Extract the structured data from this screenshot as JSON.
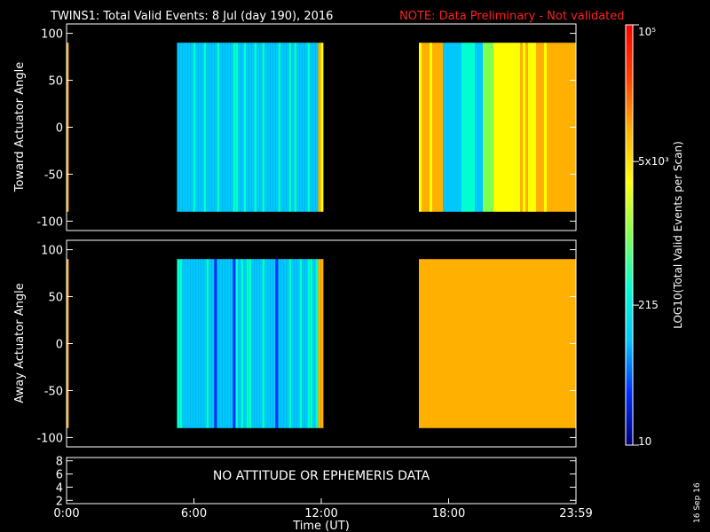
{
  "header": {
    "title": "TWINS1: Total Valid Events:  8 Jul (day 190), 2016",
    "note": "NOTE: Data Preliminary - Not validated",
    "note_color": "#ff2020"
  },
  "footer": {
    "date_stamp": "16 Sep 16",
    "no_data_message": "NO ATTITUDE OR EPHEMERIS DATA"
  },
  "chart_data": [
    {
      "type": "heatmap",
      "ylabel": "Toward Actuator Angle",
      "xlabel": "",
      "ylim": [
        -110,
        110
      ],
      "yticks": [
        "100",
        "50",
        "0",
        "-50",
        "-100"
      ],
      "data_y_range": [
        -90,
        90
      ],
      "segments": [
        {
          "x_start_hours": 0.0,
          "x_end_hours": 0.1,
          "level": "high"
        },
        {
          "x_start_hours": 5.2,
          "x_end_hours": 12.1,
          "level": "low"
        },
        {
          "x_start_hours": 16.6,
          "x_end_hours": 24.0,
          "level": "rising"
        }
      ]
    },
    {
      "type": "heatmap",
      "ylabel": "Away Actuator Angle",
      "xlabel": "",
      "ylim": [
        -110,
        110
      ],
      "yticks": [
        "100",
        "50",
        "0",
        "-50",
        "-100"
      ],
      "data_y_range": [
        -90,
        90
      ],
      "segments": [
        {
          "x_start_hours": 0.0,
          "x_end_hours": 0.1,
          "level": "high"
        },
        {
          "x_start_hours": 5.2,
          "x_end_hours": 12.1,
          "level": "low"
        },
        {
          "x_start_hours": 16.6,
          "x_end_hours": 24.0,
          "level": "high"
        }
      ]
    },
    {
      "type": "line",
      "ylabel": "",
      "xlabel": "Time (UT)",
      "ylim": [
        1.5,
        8.5
      ],
      "yticks": [
        "8",
        "6",
        "4",
        "2"
      ],
      "xticks": [
        "0:00",
        "6:00",
        "12:00",
        "18:00",
        "23:59"
      ],
      "series": []
    }
  ],
  "colorbar": {
    "title": "LOG10(Total Valid Events per Scan)",
    "ticks": [
      {
        "label": "10⁵",
        "value": 100000
      },
      {
        "label": "5x10³",
        "value": 5000
      },
      {
        "label": "215",
        "value": 215
      },
      {
        "label": "10",
        "value": 10
      }
    ],
    "colors": [
      "#00007a",
      "#0030ff",
      "#00c8ff",
      "#00ffd0",
      "#7fff50",
      "#ffff00",
      "#ffb000",
      "#ff4000",
      "#ff0000"
    ]
  }
}
